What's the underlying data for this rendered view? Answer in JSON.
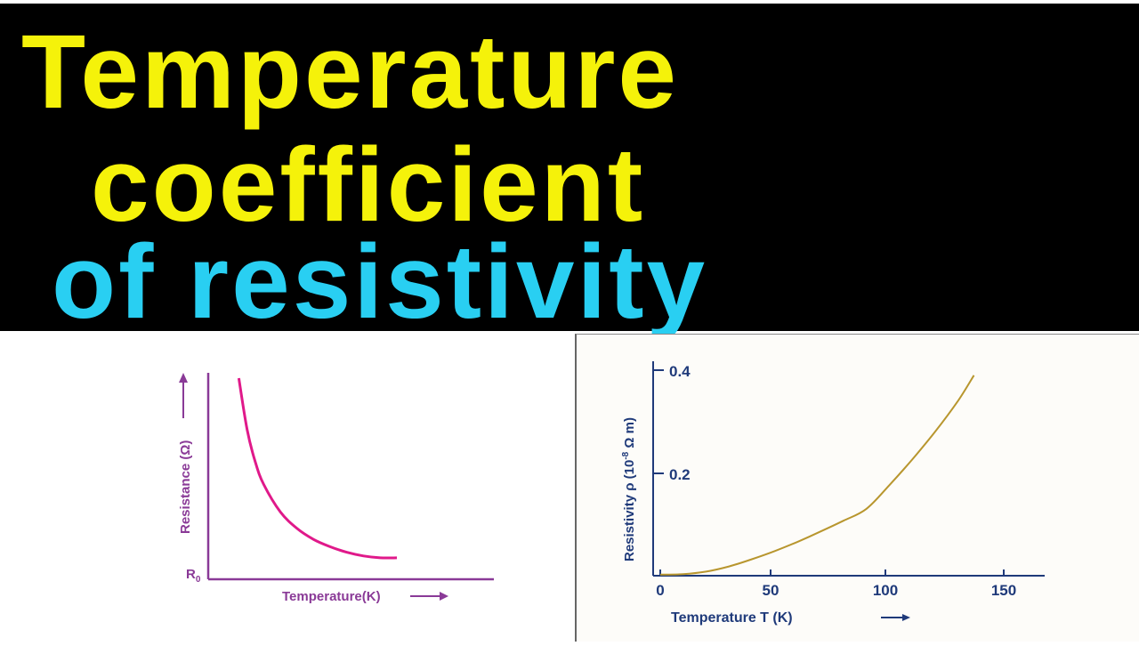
{
  "title": {
    "line1": "Temperature",
    "line2": "coefficient",
    "line3": "of resistivity"
  },
  "colors": {
    "banner_bg": "#000000",
    "title_yellow": "#f5f20a",
    "title_cyan": "#29cff2",
    "left_axis": "#8a3a97",
    "left_curve": "#e0198a",
    "right_axis": "#1f3a7a",
    "right_curve": "#b8962e"
  },
  "chart_data": [
    {
      "type": "line",
      "xlabel": "Temperature(K)",
      "ylabel": "Resistance (Ω)",
      "y_baseline_label_main": "R",
      "y_baseline_label_sub": "0",
      "ticks": false,
      "series": [
        {
          "x": [
            0.05,
            0.1,
            0.15,
            0.2,
            0.3,
            0.4,
            0.5,
            0.6,
            0.7,
            0.8,
            0.9,
            1.0
          ],
          "values": [
            1.0,
            0.72,
            0.54,
            0.42,
            0.27,
            0.18,
            0.12,
            0.08,
            0.05,
            0.03,
            0.02,
            0.02
          ]
        }
      ]
    },
    {
      "type": "line",
      "xlabel": "Temperature T (K)",
      "ylabel_main": "Resistivity ρ (10",
      "ylabel_exp": "-8",
      "ylabel_end": " Ω m)",
      "xlim": [
        0,
        160
      ],
      "ylim": [
        0,
        0.42
      ],
      "x_ticks": [
        "0",
        "50",
        "100",
        "150"
      ],
      "y_ticks": [
        "0.2",
        "0.4"
      ],
      "series": [
        {
          "x": [
            0,
            10,
            20,
            30,
            40,
            50,
            60,
            70,
            80,
            90,
            100,
            110,
            120,
            130,
            137
          ],
          "values": [
            0.002,
            0.003,
            0.008,
            0.018,
            0.032,
            0.048,
            0.066,
            0.086,
            0.107,
            0.13,
            0.176,
            0.226,
            0.28,
            0.34,
            0.39
          ]
        }
      ]
    }
  ]
}
